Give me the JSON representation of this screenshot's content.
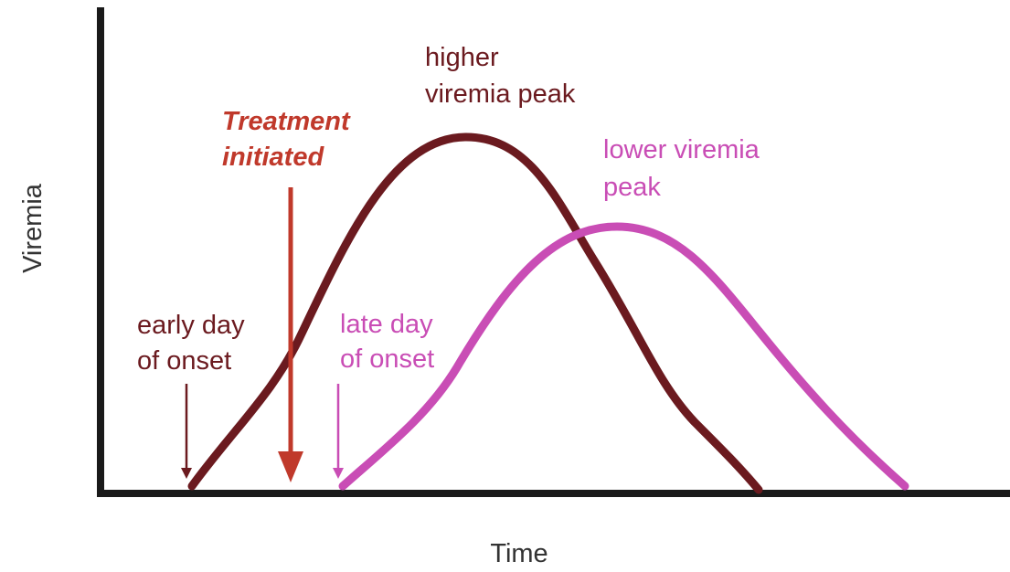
{
  "axes": {
    "y_label": "Viremia",
    "x_label": "Time"
  },
  "annotations": {
    "higher_peak": [
      "higher",
      "viremia peak"
    ],
    "treatment": [
      "Treatment",
      "initiated"
    ],
    "lower_peak": [
      "lower viremia",
      "peak"
    ],
    "early_onset": [
      "early day",
      "of onset"
    ],
    "late_onset": [
      "late day",
      "of onset"
    ]
  }
}
